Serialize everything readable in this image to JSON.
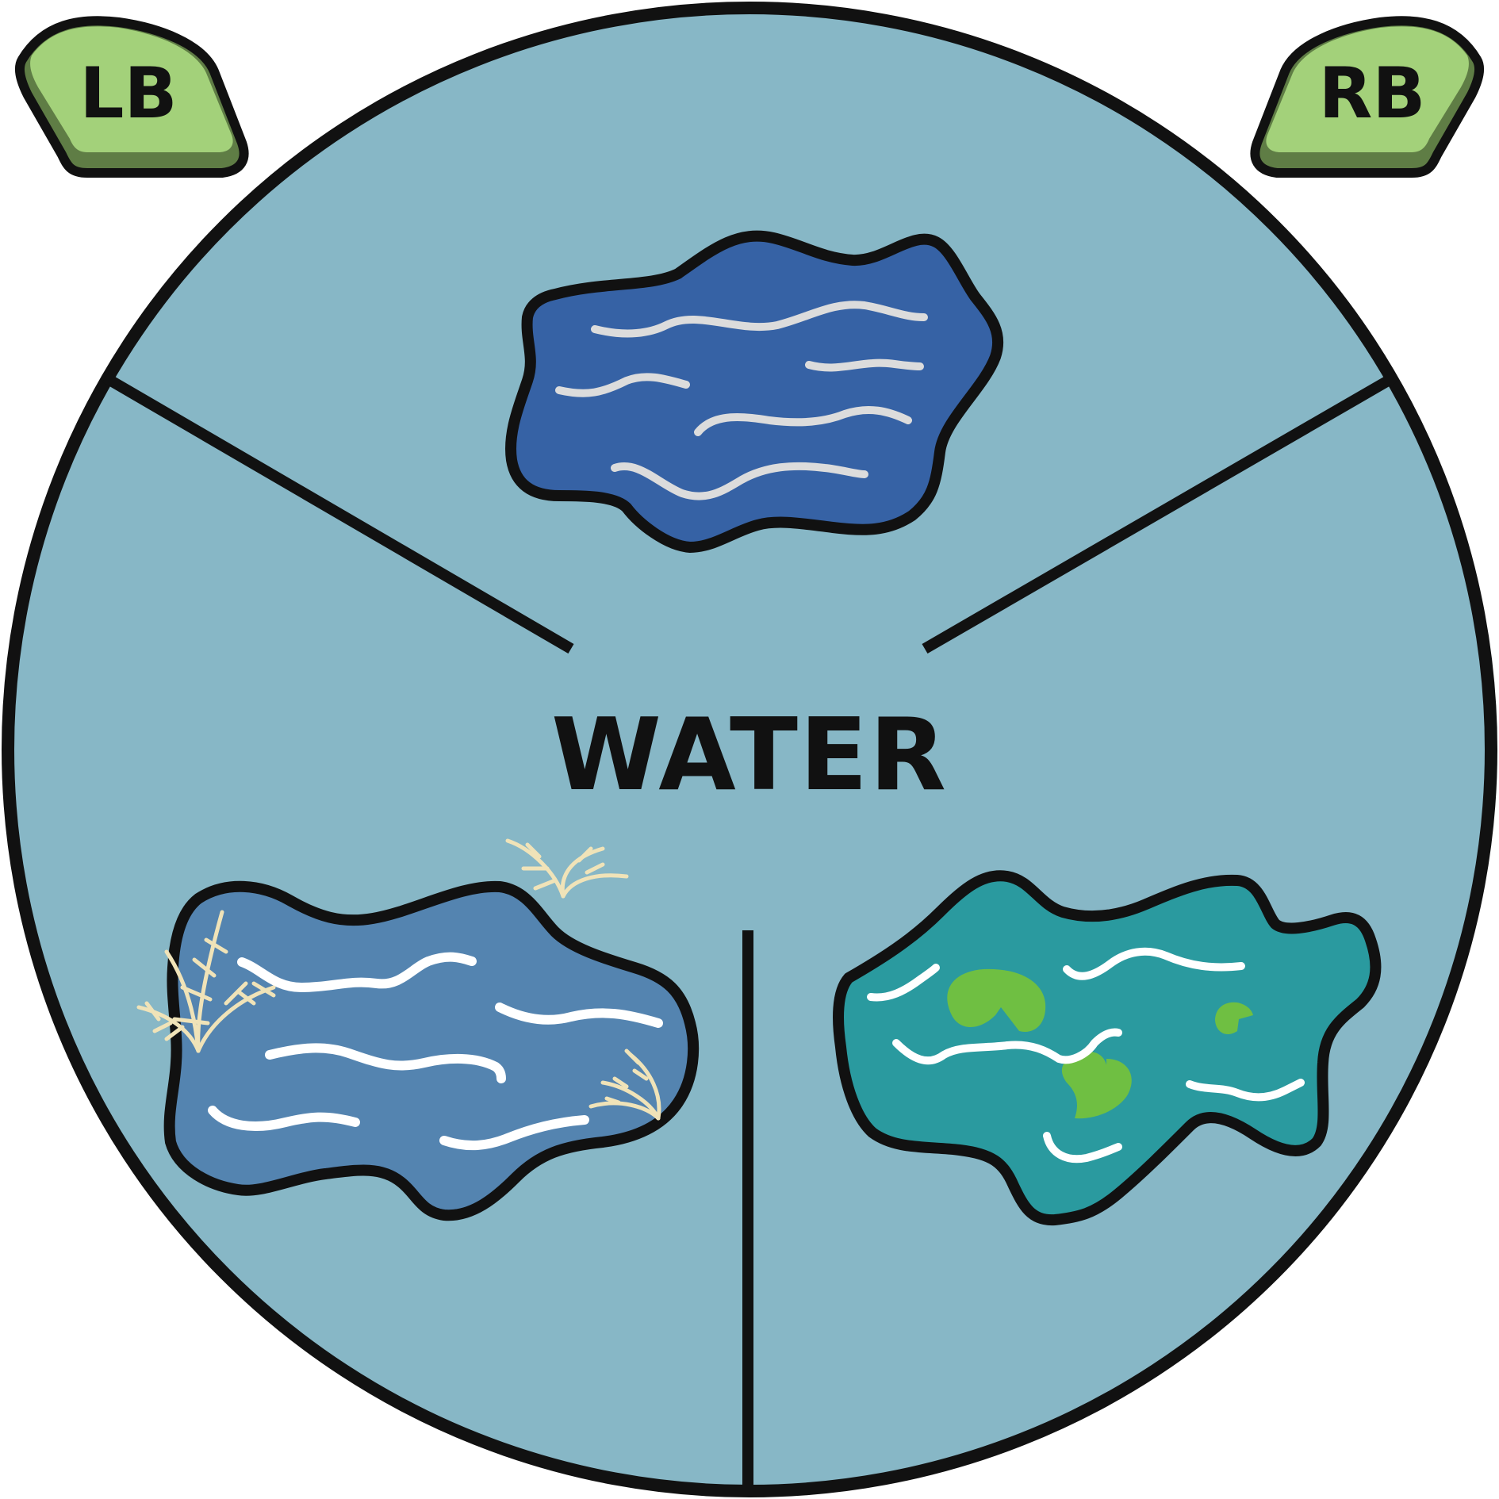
{
  "wheel": {
    "category_label": "WATER",
    "wheel_color": "#87b7c6",
    "outline_color": "#111111"
  },
  "shoulder_buttons": {
    "left_label": "LB",
    "right_label": "RB",
    "color": "#a3d17a",
    "shadow_color": "#5f7d45"
  },
  "options": [
    {
      "icon": "deep-water-pond-icon",
      "color": "#3662a5"
    },
    {
      "icon": "reed-pond-icon",
      "color": "#5484b0"
    },
    {
      "icon": "lily-pad-pond-icon",
      "color": "#2a9a9f"
    }
  ]
}
